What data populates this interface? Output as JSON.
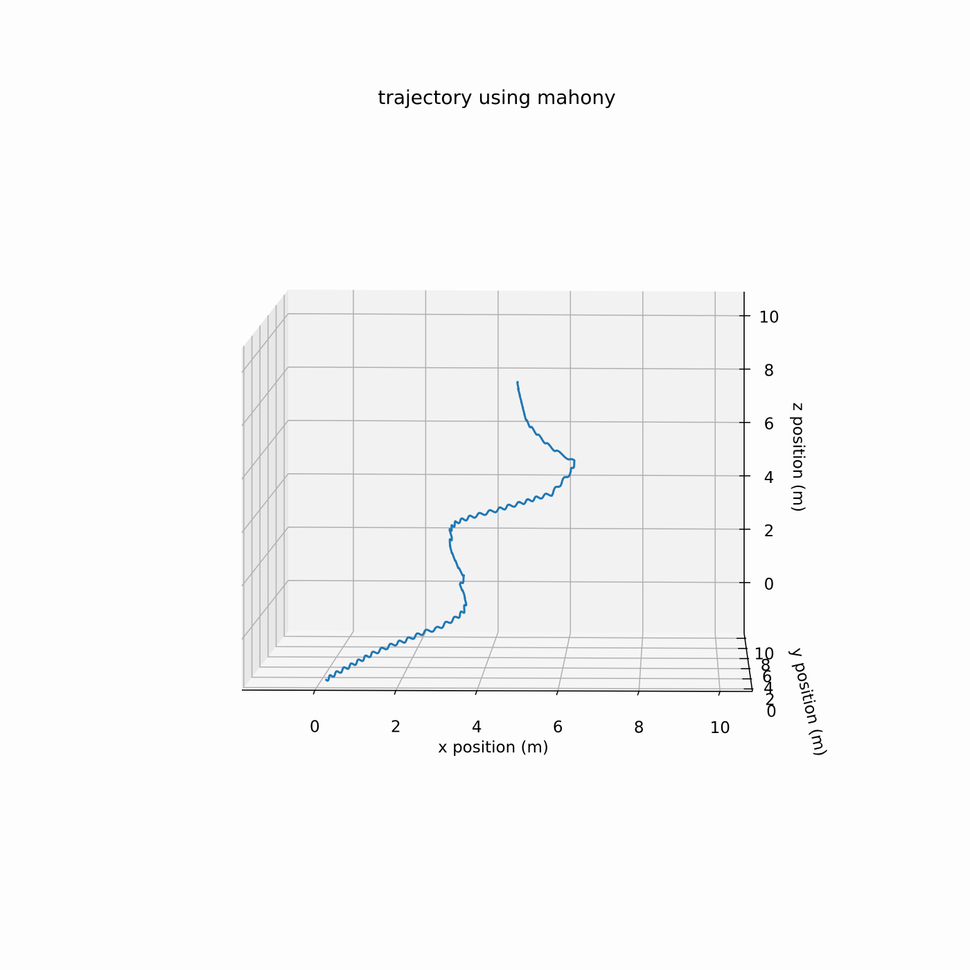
{
  "chart_data": {
    "type": "line",
    "projection": "3d",
    "title": "trajectory using mahony",
    "xlabel": "x position (m)",
    "ylabel": "y position (m)",
    "zlabel": "z position (m)",
    "xlim": [
      -1.8,
      10.8
    ],
    "ylim": [
      -0.5,
      11
    ],
    "zlim": [
      -1.9,
      10.9
    ],
    "xticks": [
      0,
      2,
      4,
      6,
      8,
      10
    ],
    "yticks": [
      0,
      2,
      4,
      6,
      8,
      10
    ],
    "zticks": [
      0,
      2,
      4,
      6,
      8,
      10
    ],
    "grid": true,
    "series": [
      {
        "color": "#1f77b4",
        "x": [
          0.2,
          0.35,
          0.55,
          0.75,
          0.95,
          1.15,
          1.35,
          1.6,
          1.85,
          2.1,
          2.35,
          2.6,
          2.9,
          3.15,
          3.4,
          3.55,
          3.6,
          3.55,
          3.45,
          3.55,
          3.4,
          3.3,
          3.2,
          3.15,
          3.2,
          3.15,
          3.2,
          3.3,
          3.5,
          3.75,
          4.05,
          4.35,
          4.6,
          4.9,
          5.15,
          5.4,
          5.7,
          5.95,
          6.2,
          6.3,
          5.85,
          5.55,
          5.3,
          5.1,
          5.0,
          4.95,
          4.9,
          4.85,
          4.8,
          4.78
        ],
        "y": [
          0.5,
          0.6,
          0.7,
          0.8,
          0.9,
          1.0,
          1.1,
          1.2,
          1.3,
          1.4,
          1.5,
          1.6,
          1.7,
          1.8,
          1.9,
          2.0,
          2.1,
          2.2,
          2.3,
          2.4,
          2.5,
          2.6,
          2.7,
          2.8,
          2.9,
          3.0,
          3.1,
          3.2,
          3.3,
          3.4,
          3.5,
          3.6,
          3.7,
          3.8,
          3.9,
          4.0,
          4.1,
          4.2,
          4.3,
          4.4,
          4.5,
          4.6,
          4.7,
          4.8,
          4.9,
          5.0,
          5.1,
          5.2,
          5.3,
          5.4
        ],
        "z": [
          -1.7,
          -1.55,
          -1.4,
          -1.25,
          -1.1,
          -0.95,
          -0.8,
          -0.65,
          -0.5,
          -0.4,
          -0.25,
          -0.1,
          0.0,
          0.2,
          0.4,
          0.6,
          0.9,
          1.2,
          1.5,
          1.8,
          2.1,
          2.4,
          2.7,
          3.0,
          3.2,
          3.4,
          3.55,
          3.7,
          3.8,
          3.9,
          4.0,
          4.1,
          4.2,
          4.3,
          4.4,
          4.5,
          4.6,
          5.0,
          5.4,
          5.75,
          6.1,
          6.4,
          6.75,
          7.05,
          7.3,
          7.55,
          7.8,
          8.05,
          8.3,
          8.55
        ]
      }
    ]
  }
}
